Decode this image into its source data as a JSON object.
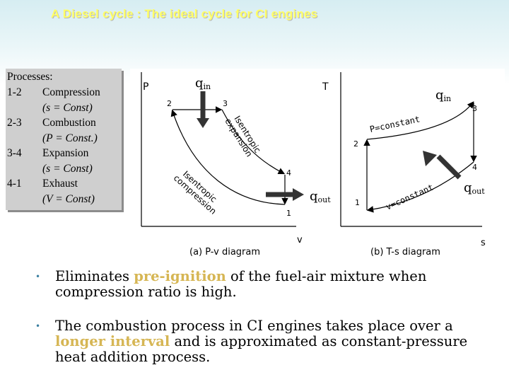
{
  "title": "A Diesel cycle : The ideal cycle for CI engines",
  "processes": {
    "heading": "Processes:",
    "items": [
      {
        "num": "1-2",
        "name": "Compression",
        "cond": "(s = Const)"
      },
      {
        "num": "2-3",
        "name": "Combustion",
        "cond": "(P = Const.)"
      },
      {
        "num": "3-4",
        "name": "Expansion",
        "cond": "(s = Const)"
      },
      {
        "num": "4-1",
        "name": "Exhaust",
        "cond": "(V = Const)"
      }
    ]
  },
  "pv": {
    "y_axis": "P",
    "x_axis": "v",
    "caption": "(a) P-v diagram",
    "qin_main": "q",
    "qin_sub": "in",
    "qout_main": "q",
    "qout_sub": "out",
    "p1": "1",
    "p2": "2",
    "p3": "3",
    "p4": "4",
    "expansion_label_1": "Isentropic",
    "expansion_label_2": "expansion",
    "compression_label_1": "Isentropic",
    "compression_label_2": "compression"
  },
  "ts": {
    "y_axis": "T",
    "x_axis": "s",
    "caption": "(b) T-s diagram",
    "qin_main": "q",
    "qin_sub": "in",
    "qout_main": "q",
    "qout_sub": "out",
    "p1": "1",
    "p2": "2",
    "p3": "3",
    "p4": "4",
    "p_const": "P=constant",
    "v_const": "v=constant"
  },
  "bullets": [
    {
      "pre": "Eliminates ",
      "hl": "pre-ignition",
      "post": " of the fuel-air mixture when compression ratio is high."
    },
    {
      "pre": "The combustion process in CI engines takes place over a ",
      "hl": "longer interval",
      "post": " and is approximated as constant-pressure heat addition process."
    }
  ],
  "colors": {
    "title": "#ffff66",
    "highlight": "#d6b654",
    "bullet": "#3a7fa0",
    "arrow": "#333333"
  }
}
